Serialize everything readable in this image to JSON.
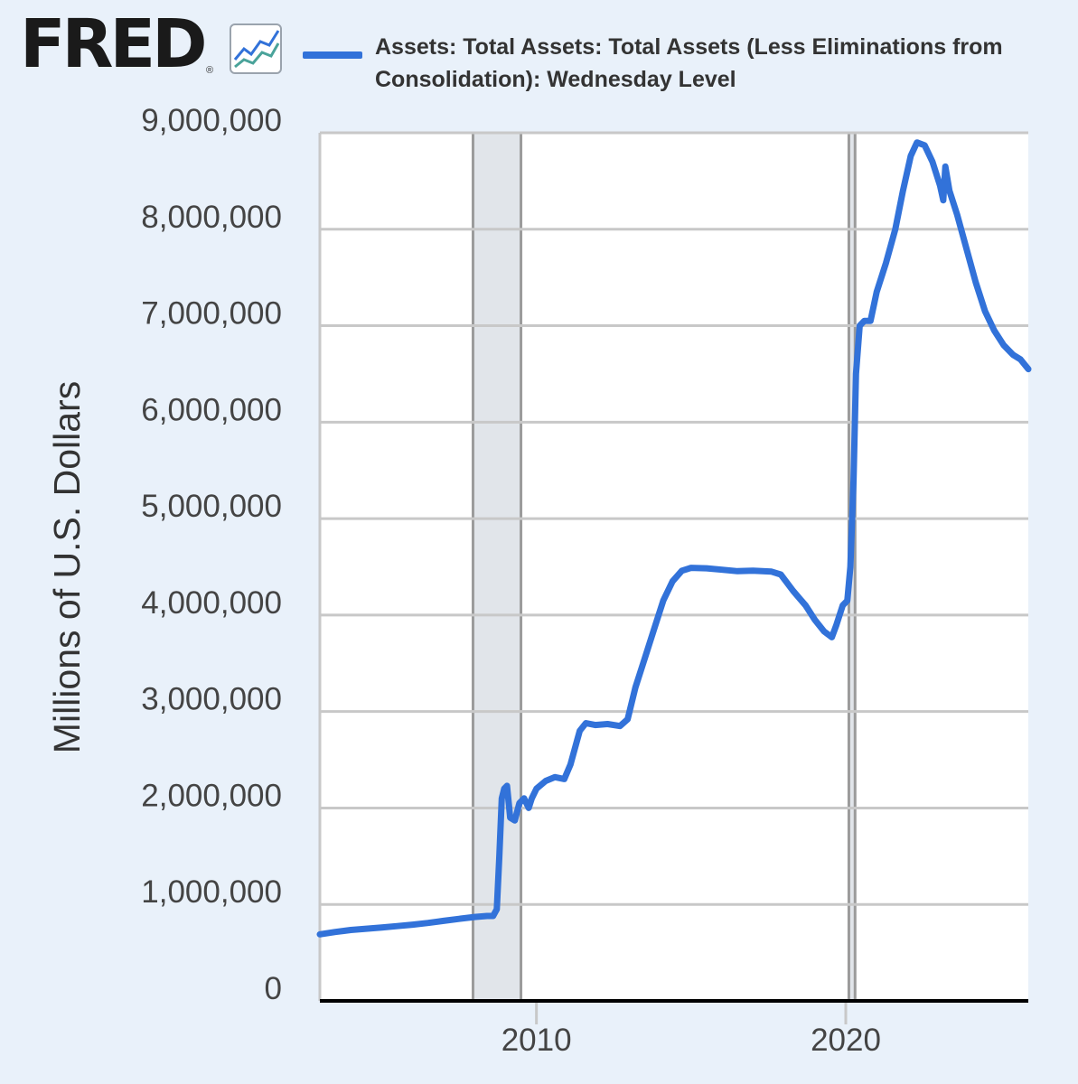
{
  "brand": {
    "logo_text": "FRED",
    "logo_reg": "®",
    "logo_icon": "trend-lines-icon"
  },
  "colors": {
    "background": "#e9f1fa",
    "series": "#3272d9",
    "grid": "#c8c8c8",
    "recession": "#e1e5ea",
    "recession_border": "#9b9b9b"
  },
  "chart_data": {
    "type": "line",
    "title": "",
    "ylabel": "Millions of U.S. Dollars",
    "xlabel": "",
    "xlim": [
      2003.0,
      2025.9
    ],
    "ylim": [
      0,
      9000000
    ],
    "grid": true,
    "legend_position": "top",
    "x_ticks": [
      {
        "value": 2010,
        "label": "2010"
      },
      {
        "value": 2020,
        "label": "2020"
      }
    ],
    "y_ticks": [
      {
        "value": 0,
        "label": "0"
      },
      {
        "value": 1000000,
        "label": "1,000,000"
      },
      {
        "value": 2000000,
        "label": "2,000,000"
      },
      {
        "value": 3000000,
        "label": "3,000,000"
      },
      {
        "value": 4000000,
        "label": "4,000,000"
      },
      {
        "value": 5000000,
        "label": "5,000,000"
      },
      {
        "value": 6000000,
        "label": "6,000,000"
      },
      {
        "value": 7000000,
        "label": "7,000,000"
      },
      {
        "value": 8000000,
        "label": "8,000,000"
      },
      {
        "value": 9000000,
        "label": "9,000,000"
      }
    ],
    "recessions": [
      {
        "start": 2007.95,
        "end": 2009.5
      },
      {
        "start": 2020.1,
        "end": 2020.3
      }
    ],
    "series": [
      {
        "name": "Assets: Total Assets: Total Assets (Less Eliminations from Consolidation): Wednesday Level",
        "points": [
          [
            2003.0,
            690000
          ],
          [
            2003.5,
            715000
          ],
          [
            2004.0,
            735000
          ],
          [
            2004.5,
            748000
          ],
          [
            2005.0,
            760000
          ],
          [
            2005.5,
            775000
          ],
          [
            2006.0,
            790000
          ],
          [
            2006.5,
            808000
          ],
          [
            2007.0,
            830000
          ],
          [
            2007.5,
            850000
          ],
          [
            2008.0,
            870000
          ],
          [
            2008.4,
            880000
          ],
          [
            2008.6,
            880000
          ],
          [
            2008.72,
            950000
          ],
          [
            2008.8,
            1500000
          ],
          [
            2008.88,
            2100000
          ],
          [
            2008.96,
            2200000
          ],
          [
            2009.05,
            2230000
          ],
          [
            2009.15,
            1900000
          ],
          [
            2009.3,
            1870000
          ],
          [
            2009.45,
            2050000
          ],
          [
            2009.6,
            2100000
          ],
          [
            2009.75,
            2000000
          ],
          [
            2009.85,
            2100000
          ],
          [
            2010.0,
            2200000
          ],
          [
            2010.3,
            2280000
          ],
          [
            2010.6,
            2320000
          ],
          [
            2010.9,
            2300000
          ],
          [
            2011.1,
            2450000
          ],
          [
            2011.4,
            2800000
          ],
          [
            2011.6,
            2880000
          ],
          [
            2011.9,
            2860000
          ],
          [
            2012.3,
            2870000
          ],
          [
            2012.7,
            2850000
          ],
          [
            2012.95,
            2920000
          ],
          [
            2013.2,
            3250000
          ],
          [
            2013.5,
            3550000
          ],
          [
            2013.8,
            3850000
          ],
          [
            2014.1,
            4150000
          ],
          [
            2014.4,
            4350000
          ],
          [
            2014.7,
            4460000
          ],
          [
            2015.0,
            4490000
          ],
          [
            2015.5,
            4485000
          ],
          [
            2016.0,
            4470000
          ],
          [
            2016.5,
            4455000
          ],
          [
            2017.0,
            4460000
          ],
          [
            2017.6,
            4450000
          ],
          [
            2017.9,
            4420000
          ],
          [
            2018.3,
            4250000
          ],
          [
            2018.7,
            4100000
          ],
          [
            2019.0,
            3950000
          ],
          [
            2019.3,
            3830000
          ],
          [
            2019.55,
            3770000
          ],
          [
            2019.7,
            3900000
          ],
          [
            2019.9,
            4100000
          ],
          [
            2020.05,
            4150000
          ],
          [
            2020.15,
            4500000
          ],
          [
            2020.25,
            5400000
          ],
          [
            2020.33,
            6500000
          ],
          [
            2020.45,
            7000000
          ],
          [
            2020.6,
            7050000
          ],
          [
            2020.8,
            7050000
          ],
          [
            2021.0,
            7350000
          ],
          [
            2021.3,
            7650000
          ],
          [
            2021.6,
            8000000
          ],
          [
            2021.85,
            8400000
          ],
          [
            2022.1,
            8760000
          ],
          [
            2022.3,
            8900000
          ],
          [
            2022.55,
            8870000
          ],
          [
            2022.8,
            8700000
          ],
          [
            2023.05,
            8450000
          ],
          [
            2023.15,
            8300000
          ],
          [
            2023.22,
            8650000
          ],
          [
            2023.35,
            8400000
          ],
          [
            2023.6,
            8150000
          ],
          [
            2023.9,
            7800000
          ],
          [
            2024.2,
            7450000
          ],
          [
            2024.5,
            7150000
          ],
          [
            2024.8,
            6950000
          ],
          [
            2025.1,
            6800000
          ],
          [
            2025.4,
            6700000
          ],
          [
            2025.65,
            6650000
          ],
          [
            2025.9,
            6550000
          ]
        ]
      }
    ]
  }
}
